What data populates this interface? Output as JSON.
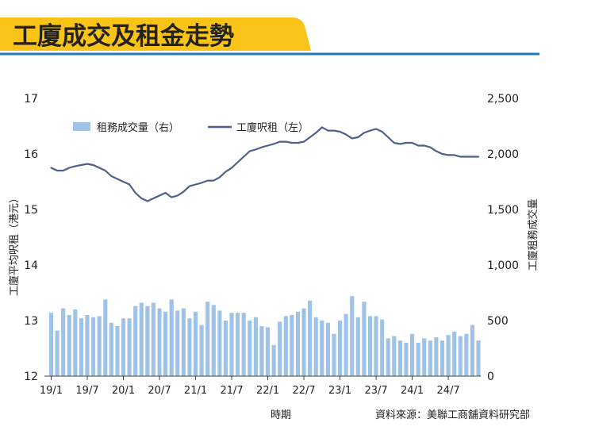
{
  "title": "工廈成交及租金走勢",
  "source_label": "資料來源：美聯工商舖資料研究部",
  "colors": {
    "title_banner": "#f9c417",
    "rule_line": "#1f77b8",
    "rent_line": "#4d5f8a",
    "volume_bar": "#9fc3e6",
    "axis": "#444444",
    "text": "#222222"
  },
  "chart_data": {
    "type": "bar+line",
    "xlabel": "時期",
    "ylabel_left": "工廈平均呎租（港元）",
    "ylabel_right": "工廈租務成交量",
    "ylim_left": [
      12,
      17
    ],
    "ylim_right": [
      0,
      2500
    ],
    "yticks_left": [
      "12",
      "13",
      "14",
      "15",
      "16",
      "17"
    ],
    "yticks_right": [
      "0",
      "500",
      "1,000",
      "1,500",
      "2,000",
      "2,500"
    ],
    "x_tick_labels": [
      "19/1",
      "19/7",
      "20/1",
      "20/7",
      "21/1",
      "21/7",
      "22/1",
      "22/7",
      "23/1",
      "23/7",
      "24/1",
      "24/7"
    ],
    "legend_placement": "top-left",
    "grid": false,
    "series": [
      {
        "name": "租務成交量（右）",
        "kind": "bar",
        "axis": "right",
        "values": [
          570,
          410,
          610,
          550,
          600,
          520,
          550,
          530,
          540,
          690,
          480,
          450,
          520,
          520,
          630,
          660,
          630,
          660,
          610,
          580,
          690,
          590,
          610,
          520,
          580,
          460,
          670,
          640,
          590,
          500,
          570,
          570,
          570,
          500,
          530,
          450,
          440,
          280,
          490,
          540,
          550,
          580,
          610,
          680,
          530,
          500,
          480,
          380,
          500,
          560,
          720,
          530,
          670,
          540,
          540,
          510,
          340,
          360,
          320,
          300,
          380,
          300,
          340,
          320,
          350,
          320,
          370,
          400,
          360,
          380,
          460,
          320
        ]
      },
      {
        "name": "工廈呎租（左）",
        "kind": "line",
        "axis": "left",
        "values": [
          15.75,
          15.7,
          15.7,
          15.75,
          15.78,
          15.8,
          15.82,
          15.8,
          15.75,
          15.7,
          15.6,
          15.55,
          15.5,
          15.45,
          15.3,
          15.2,
          15.15,
          15.2,
          15.25,
          15.3,
          15.22,
          15.25,
          15.32,
          15.42,
          15.45,
          15.48,
          15.52,
          15.52,
          15.58,
          15.68,
          15.75,
          15.85,
          15.95,
          16.05,
          16.08,
          16.12,
          16.15,
          16.18,
          16.22,
          16.22,
          16.2,
          16.2,
          16.22,
          16.3,
          16.38,
          16.48,
          16.42,
          16.42,
          16.4,
          16.35,
          16.28,
          16.3,
          16.38,
          16.42,
          16.45,
          16.4,
          16.3,
          16.2,
          16.18,
          16.2,
          16.2,
          16.15,
          16.15,
          16.12,
          16.05,
          16.0,
          15.98,
          15.98,
          15.95,
          15.95,
          15.95,
          15.95
        ]
      }
    ]
  }
}
